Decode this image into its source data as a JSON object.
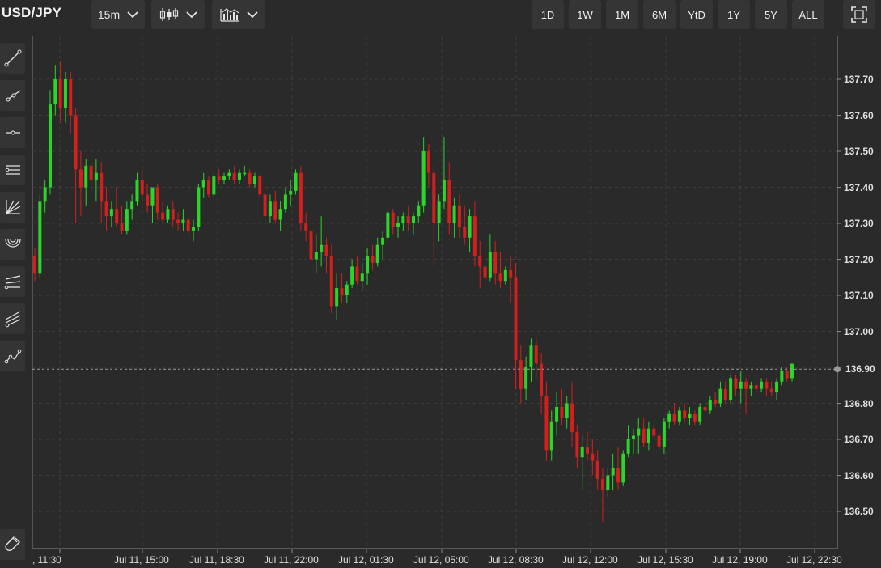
{
  "header": {
    "symbol": "USD/JPY",
    "interval": "15m",
    "chart_type_icon": "candlestick-icon",
    "indicators_icon": "indicators-icon",
    "ranges": [
      "1D",
      "1W",
      "1M",
      "6M",
      "YtD",
      "1Y",
      "5Y",
      "ALL"
    ],
    "fullscreen_icon": "fullscreen-icon"
  },
  "toolbar": {
    "tools": [
      "trend-line-icon",
      "ray-icon",
      "horizontal-line-icon",
      "channel-icon",
      "fan-icon",
      "arc-icon",
      "fib-retracement-icon",
      "pitchfork-icon",
      "path-icon"
    ],
    "bottom_tool": "magnet-icon"
  },
  "chart_data": {
    "type": "candlestick",
    "y_ticks": [
      "137.70",
      "137.60",
      "137.50",
      "137.40",
      "137.30",
      "137.20",
      "137.10",
      "137.00",
      "136.90",
      "136.80",
      "136.70",
      "136.60",
      "136.50"
    ],
    "x_ticks": [
      ", 11:30",
      "Jul 11, 15:00",
      "Jul 11, 18:30",
      "Jul 11, 22:00",
      "Jul 12, 01:30",
      "Jul 12, 05:00",
      "Jul 12, 08:30",
      "Jul 12, 12:00",
      "Jul 12, 15:30",
      "Jul 12, 19:00",
      "Jul 12, 22:30"
    ],
    "ylim": [
      136.44,
      137.79
    ],
    "current_price": "136.90",
    "current_value": 136.895,
    "colors": {
      "up": "#2bd62b",
      "down": "#d41f1f",
      "grid": "#3e3f3e",
      "bg": "#292a29"
    },
    "candles": [
      [
        137.21,
        137.23,
        137.14,
        137.16
      ],
      [
        137.16,
        137.38,
        137.15,
        137.36
      ],
      [
        137.36,
        137.42,
        137.33,
        137.4
      ],
      [
        137.4,
        137.67,
        137.38,
        137.63
      ],
      [
        137.63,
        137.74,
        137.6,
        137.7
      ],
      [
        137.7,
        137.75,
        137.58,
        137.62
      ],
      [
        137.62,
        137.72,
        137.58,
        137.7
      ],
      [
        137.7,
        137.72,
        137.55,
        137.6
      ],
      [
        137.6,
        137.62,
        137.3,
        137.45
      ],
      [
        137.45,
        137.5,
        137.32,
        137.4
      ],
      [
        137.4,
        137.48,
        137.35,
        137.46
      ],
      [
        137.46,
        137.52,
        137.38,
        137.42
      ],
      [
        137.42,
        137.48,
        137.36,
        137.44
      ],
      [
        137.44,
        137.47,
        137.3,
        137.36
      ],
      [
        137.36,
        137.4,
        137.28,
        137.32
      ],
      [
        137.32,
        137.36,
        137.29,
        137.34
      ],
      [
        137.34,
        137.4,
        137.29,
        137.3
      ],
      [
        137.3,
        137.35,
        137.27,
        137.28
      ],
      [
        137.28,
        137.36,
        137.27,
        137.34
      ],
      [
        137.34,
        137.38,
        137.31,
        137.36
      ],
      [
        137.36,
        137.44,
        137.35,
        137.42
      ],
      [
        137.42,
        137.45,
        137.36,
        137.38
      ],
      [
        137.38,
        137.41,
        137.33,
        137.35
      ],
      [
        137.35,
        137.4,
        137.3,
        137.4
      ],
      [
        137.4,
        137.41,
        137.31,
        137.33
      ],
      [
        137.33,
        137.36,
        137.3,
        137.31
      ],
      [
        137.31,
        137.35,
        137.3,
        137.34
      ],
      [
        137.34,
        137.36,
        137.29,
        137.31
      ],
      [
        137.31,
        137.33,
        137.28,
        137.3
      ],
      [
        137.3,
        137.34,
        137.28,
        137.31
      ],
      [
        137.31,
        137.32,
        137.26,
        137.28
      ],
      [
        137.28,
        137.31,
        137.25,
        137.29
      ],
      [
        137.29,
        137.41,
        137.28,
        137.4
      ],
      [
        137.4,
        137.44,
        137.37,
        137.42
      ],
      [
        137.42,
        137.43,
        137.37,
        137.38
      ],
      [
        137.38,
        137.44,
        137.37,
        137.43
      ],
      [
        137.43,
        137.45,
        137.41,
        137.42
      ],
      [
        137.42,
        137.44,
        137.41,
        137.43
      ],
      [
        137.43,
        137.45,
        137.42,
        137.44
      ],
      [
        137.44,
        137.46,
        137.41,
        137.42
      ],
      [
        137.42,
        137.45,
        137.41,
        137.44
      ],
      [
        137.44,
        137.46,
        137.43,
        137.44
      ],
      [
        137.44,
        137.45,
        137.4,
        137.41
      ],
      [
        137.41,
        137.44,
        137.4,
        137.43
      ],
      [
        137.43,
        137.44,
        137.37,
        137.38
      ],
      [
        137.38,
        137.41,
        137.3,
        137.32
      ],
      [
        137.32,
        137.38,
        137.3,
        137.36
      ],
      [
        137.36,
        137.39,
        137.3,
        137.31
      ],
      [
        137.31,
        137.36,
        137.28,
        137.34
      ],
      [
        137.34,
        137.4,
        137.33,
        137.38
      ],
      [
        137.38,
        137.42,
        137.35,
        137.39
      ],
      [
        137.39,
        137.45,
        137.38,
        137.44
      ],
      [
        137.44,
        137.46,
        137.28,
        137.3
      ],
      [
        137.3,
        137.33,
        137.25,
        137.28
      ],
      [
        137.28,
        137.31,
        137.17,
        137.2
      ],
      [
        137.2,
        137.27,
        137.16,
        137.22
      ],
      [
        137.22,
        137.32,
        137.18,
        137.24
      ],
      [
        137.24,
        137.26,
        137.16,
        137.21
      ],
      [
        137.21,
        137.24,
        137.05,
        137.07
      ],
      [
        137.07,
        137.16,
        137.03,
        137.12
      ],
      [
        137.12,
        137.16,
        137.08,
        137.1
      ],
      [
        137.1,
        137.14,
        137.08,
        137.13
      ],
      [
        137.13,
        137.2,
        137.12,
        137.18
      ],
      [
        137.18,
        137.21,
        137.13,
        137.14
      ],
      [
        137.14,
        137.19,
        137.11,
        137.16
      ],
      [
        137.16,
        137.23,
        137.13,
        137.21
      ],
      [
        137.21,
        137.24,
        137.17,
        137.19
      ],
      [
        137.19,
        137.26,
        137.18,
        137.24
      ],
      [
        137.24,
        137.28,
        137.2,
        137.26
      ],
      [
        137.26,
        137.34,
        137.25,
        137.33
      ],
      [
        137.33,
        137.34,
        137.27,
        137.29
      ],
      [
        137.29,
        137.32,
        137.26,
        137.3
      ],
      [
        137.3,
        137.33,
        137.28,
        137.32
      ],
      [
        137.32,
        137.35,
        137.28,
        137.3
      ],
      [
        137.3,
        137.33,
        137.27,
        137.32
      ],
      [
        137.32,
        137.36,
        137.3,
        137.35
      ],
      [
        137.35,
        137.54,
        137.33,
        137.5
      ],
      [
        137.5,
        137.52,
        137.4,
        137.44
      ],
      [
        137.44,
        137.46,
        137.18,
        137.3
      ],
      [
        137.3,
        137.38,
        137.25,
        137.36
      ],
      [
        137.36,
        137.54,
        137.34,
        137.42
      ],
      [
        137.42,
        137.47,
        137.27,
        137.3
      ],
      [
        137.3,
        137.37,
        137.26,
        137.35
      ],
      [
        137.35,
        137.38,
        137.26,
        137.29
      ],
      [
        137.29,
        137.35,
        137.24,
        137.26
      ],
      [
        137.26,
        137.34,
        137.22,
        137.32
      ],
      [
        137.32,
        137.36,
        137.18,
        137.21
      ],
      [
        137.21,
        137.25,
        137.12,
        137.18
      ],
      [
        137.18,
        137.22,
        137.13,
        137.15
      ],
      [
        137.15,
        137.27,
        137.14,
        137.22
      ],
      [
        137.22,
        137.25,
        137.13,
        137.16
      ],
      [
        137.16,
        137.22,
        137.12,
        137.14
      ],
      [
        137.14,
        137.18,
        137.13,
        137.17
      ],
      [
        137.17,
        137.21,
        137.08,
        137.15
      ],
      [
        137.15,
        137.19,
        136.84,
        136.92
      ],
      [
        136.92,
        136.96,
        136.8,
        136.84
      ],
      [
        136.84,
        136.93,
        136.81,
        136.9
      ],
      [
        136.9,
        136.98,
        136.86,
        136.96
      ],
      [
        136.96,
        136.98,
        136.87,
        136.91
      ],
      [
        136.91,
        136.94,
        136.77,
        136.82
      ],
      [
        136.82,
        136.86,
        136.64,
        136.67
      ],
      [
        136.67,
        136.78,
        136.64,
        136.75
      ],
      [
        136.75,
        136.83,
        136.71,
        136.79
      ],
      [
        136.79,
        136.84,
        136.74,
        136.76
      ],
      [
        136.76,
        136.82,
        136.73,
        136.8
      ],
      [
        136.8,
        136.86,
        136.68,
        136.72
      ],
      [
        136.72,
        136.74,
        136.62,
        136.65
      ],
      [
        136.65,
        136.71,
        136.56,
        136.68
      ],
      [
        136.68,
        136.72,
        136.64,
        136.66
      ],
      [
        136.66,
        136.7,
        136.6,
        136.64
      ],
      [
        136.64,
        136.67,
        136.56,
        136.59
      ],
      [
        136.59,
        136.62,
        136.47,
        136.56
      ],
      [
        136.56,
        136.62,
        136.54,
        136.6
      ],
      [
        136.6,
        136.66,
        136.56,
        136.62
      ],
      [
        136.62,
        136.68,
        136.56,
        136.58
      ],
      [
        136.58,
        136.67,
        136.57,
        136.66
      ],
      [
        136.66,
        136.74,
        136.65,
        136.7
      ],
      [
        136.7,
        136.73,
        136.66,
        136.71
      ],
      [
        136.71,
        136.76,
        136.66,
        136.73
      ],
      [
        136.73,
        136.76,
        136.68,
        136.69
      ],
      [
        136.69,
        136.75,
        136.67,
        136.73
      ],
      [
        136.73,
        136.74,
        136.7,
        136.71
      ],
      [
        136.71,
        136.73,
        136.67,
        136.68
      ],
      [
        136.68,
        136.76,
        136.66,
        136.75
      ],
      [
        136.75,
        136.78,
        136.73,
        136.77
      ],
      [
        136.77,
        136.8,
        136.74,
        136.75
      ],
      [
        136.75,
        136.79,
        136.74,
        136.78
      ],
      [
        136.78,
        136.8,
        136.75,
        136.76
      ],
      [
        136.76,
        136.79,
        136.74,
        136.77
      ],
      [
        136.77,
        136.78,
        136.74,
        136.75
      ],
      [
        136.75,
        136.8,
        136.74,
        136.79
      ],
      [
        136.79,
        136.81,
        136.76,
        136.78
      ],
      [
        136.78,
        136.82,
        136.77,
        136.81
      ],
      [
        136.81,
        136.83,
        136.79,
        136.8
      ],
      [
        136.8,
        136.86,
        136.79,
        136.84
      ],
      [
        136.84,
        136.86,
        136.8,
        136.81
      ],
      [
        136.81,
        136.88,
        136.8,
        136.87
      ],
      [
        136.87,
        136.88,
        136.82,
        136.84
      ],
      [
        136.84,
        136.89,
        136.8,
        136.86
      ],
      [
        136.86,
        136.87,
        136.77,
        136.84
      ],
      [
        136.84,
        136.86,
        136.82,
        136.85
      ],
      [
        136.85,
        136.86,
        136.83,
        136.84
      ],
      [
        136.84,
        136.87,
        136.83,
        136.86
      ],
      [
        136.86,
        136.87,
        136.82,
        136.84
      ],
      [
        136.84,
        136.86,
        136.82,
        136.83
      ],
      [
        136.83,
        136.87,
        136.81,
        136.86
      ],
      [
        136.86,
        136.9,
        136.85,
        136.89
      ],
      [
        136.89,
        136.9,
        136.86,
        136.87
      ],
      [
        136.87,
        136.91,
        136.86,
        136.91
      ]
    ]
  }
}
